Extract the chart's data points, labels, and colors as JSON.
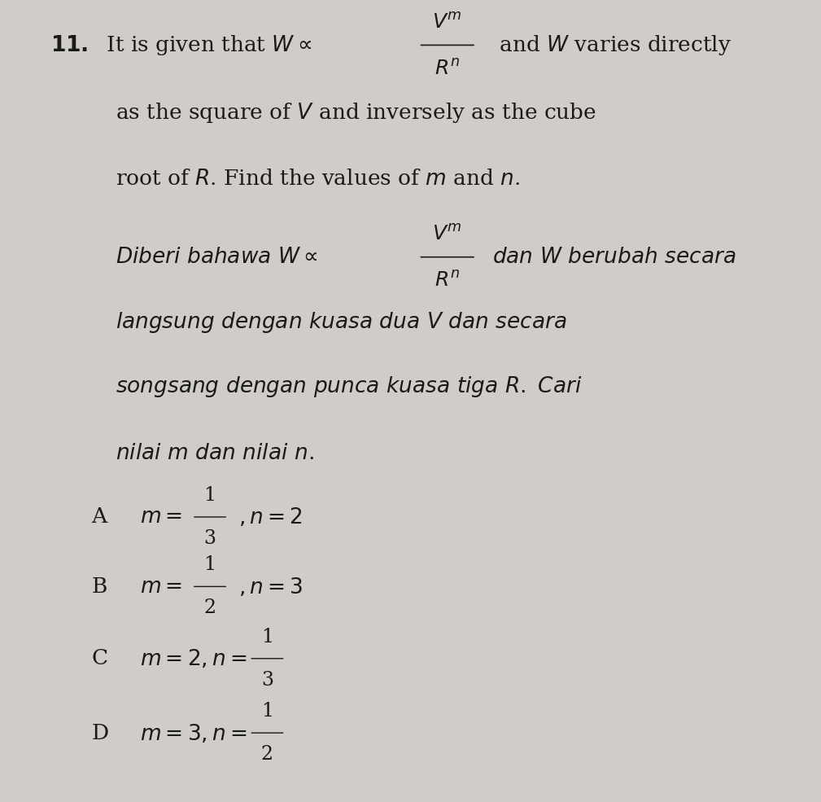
{
  "bg_color": "#d0ccc8",
  "text_color": "#1a1a1a",
  "fig_width": 10.09,
  "fig_height": 9.85,
  "question_number": "11.",
  "line1_en": "It is given that W ∝ ",
  "fraction_num": "V",
  "fraction_num_exp": "m",
  "fraction_den": "R",
  "fraction_den_exp": "n",
  "line1_en_end": " and W varies directly",
  "line2_en": "as the square of V and inversely as the cube",
  "line3_en": "root of R. Find the values of m and n.",
  "line4_ms": "Diberi bahawa W ∝ ",
  "line4_ms_end": " dan W berubah secara",
  "line5_ms": "langsung dengan kuasa dua V dan secara",
  "line6_ms": "songsang dengan punca kuasa tiga R. Cari",
  "line7_ms": "nilai m dan nilai n.",
  "optA": "A",
  "optA_text": "m = ",
  "optA_frac_num": "1",
  "optA_frac_den": "3",
  "optA_rest": ", n = 2",
  "optB": "B",
  "optB_text": "m = ",
  "optB_frac_num": "1",
  "optB_frac_den": "2",
  "optB_rest": ", n = 3",
  "optC": "C",
  "optC_text": "m = 2, n = ",
  "optC_frac_num": "1",
  "optC_frac_den": "3",
  "optD": "D",
  "optD_text": "m = 3, n = ",
  "optD_frac_num": "1",
  "optD_frac_den": "2",
  "font_size_main": 19,
  "font_size_options": 19,
  "font_size_italic": 19
}
